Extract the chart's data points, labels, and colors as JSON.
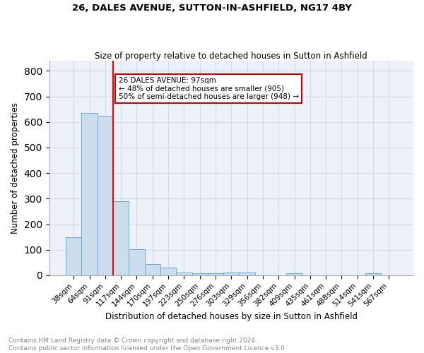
{
  "title_line1": "26, DALES AVENUE, SUTTON-IN-ASHFIELD, NG17 4BY",
  "title_line2": "Size of property relative to detached houses in Sutton in Ashfield",
  "xlabel": "Distribution of detached houses by size in Sutton in Ashfield",
  "ylabel": "Number of detached properties",
  "footnote": "Contains HM Land Registry data © Crown copyright and database right 2024.\nContains public sector information licensed under the Open Government Licence v3.0.",
  "categories": [
    "38sqm",
    "64sqm",
    "91sqm",
    "117sqm",
    "144sqm",
    "170sqm",
    "197sqm",
    "223sqm",
    "250sqm",
    "276sqm",
    "303sqm",
    "329sqm",
    "356sqm",
    "382sqm",
    "409sqm",
    "435sqm",
    "461sqm",
    "488sqm",
    "514sqm",
    "541sqm",
    "567sqm"
  ],
  "values": [
    150,
    635,
    625,
    290,
    103,
    45,
    30,
    10,
    8,
    8,
    10,
    10,
    0,
    0,
    8,
    0,
    0,
    0,
    0,
    8,
    0
  ],
  "bar_color": "#ccdded",
  "bar_edge_color": "#6aaad4",
  "grid_color": "#d0dce8",
  "bg_color": "#edf2f8",
  "red_line_x": 2.5,
  "annotation_text": "26 DALES AVENUE: 97sqm\n← 48% of detached houses are smaller (905)\n50% of semi-detached houses are larger (948) →",
  "annotation_box_color": "#ffffff",
  "annotation_box_edge": "#cc0000",
  "ylim": [
    0,
    840
  ],
  "yticks": [
    0,
    100,
    200,
    300,
    400,
    500,
    600,
    700,
    800
  ]
}
